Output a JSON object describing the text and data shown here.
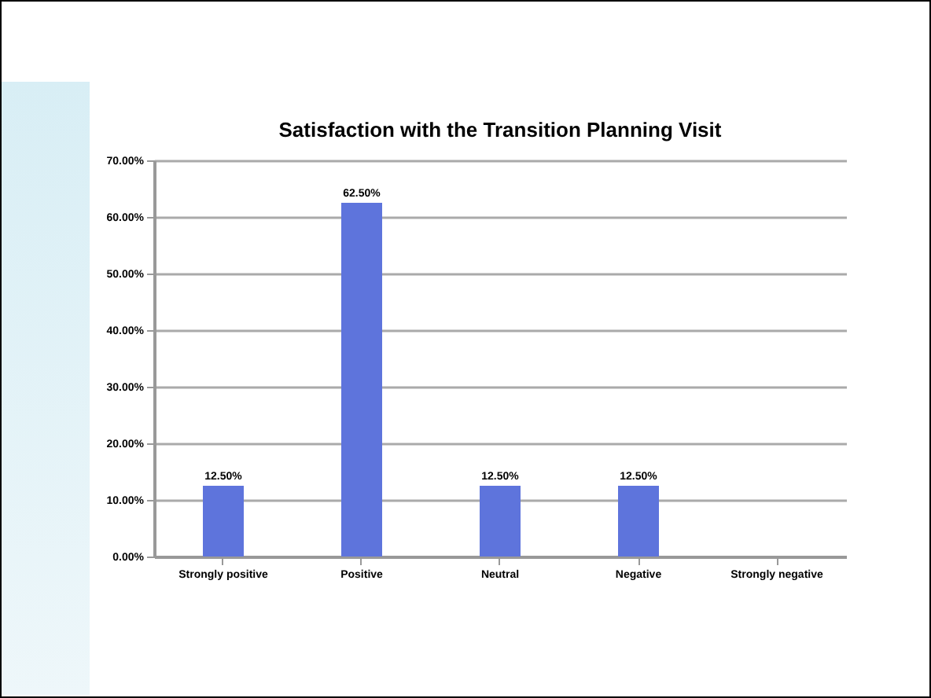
{
  "chart_data": {
    "type": "bar",
    "title": "Satisfaction with the Transition Planning Visit",
    "categories": [
      "Strongly positive",
      "Positive",
      "Neutral",
      "Negative",
      "Strongly negative"
    ],
    "values": [
      12.5,
      62.5,
      12.5,
      12.5,
      0
    ],
    "value_labels": [
      "12.50%",
      "62.50%",
      "12.50%",
      "12.50%",
      null
    ],
    "color": "#5e74dc",
    "ylim": [
      0,
      70
    ],
    "yticks": [
      {
        "value": 0,
        "label": "0.00%"
      },
      {
        "value": 10,
        "label": "10.00%"
      },
      {
        "value": 20,
        "label": "20.00%"
      },
      {
        "value": 30,
        "label": "30.00%"
      },
      {
        "value": 40,
        "label": "40.00%"
      },
      {
        "value": 50,
        "label": "50.00%"
      },
      {
        "value": 60,
        "label": "60.00%"
      },
      {
        "value": 70,
        "label": "70.00%"
      }
    ],
    "grid": "y"
  }
}
